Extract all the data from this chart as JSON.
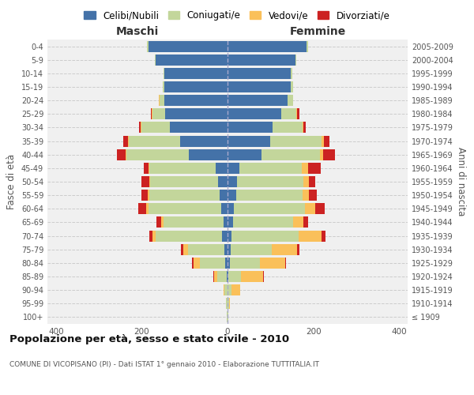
{
  "age_groups": [
    "100+",
    "95-99",
    "90-94",
    "85-89",
    "80-84",
    "75-79",
    "70-74",
    "65-69",
    "60-64",
    "55-59",
    "50-54",
    "45-49",
    "40-44",
    "35-39",
    "30-34",
    "25-29",
    "20-24",
    "15-19",
    "10-14",
    "5-9",
    "0-4"
  ],
  "birth_years": [
    "≤ 1909",
    "1910-1914",
    "1915-1919",
    "1920-1924",
    "1925-1929",
    "1930-1934",
    "1935-1939",
    "1940-1944",
    "1945-1949",
    "1950-1954",
    "1955-1959",
    "1960-1964",
    "1965-1969",
    "1970-1974",
    "1975-1979",
    "1980-1984",
    "1985-1989",
    "1990-1994",
    "1995-1999",
    "2000-2004",
    "2005-2009"
  ],
  "maschi": {
    "celibi": [
      0,
      0,
      0,
      2,
      5,
      8,
      12,
      10,
      15,
      18,
      22,
      28,
      90,
      110,
      135,
      145,
      148,
      148,
      148,
      168,
      185
    ],
    "coniugati": [
      2,
      4,
      8,
      22,
      60,
      85,
      155,
      140,
      170,
      165,
      158,
      155,
      145,
      120,
      65,
      30,
      10,
      3,
      2,
      2,
      2
    ],
    "vedovi": [
      0,
      0,
      2,
      8,
      15,
      10,
      8,
      5,
      5,
      3,
      2,
      2,
      2,
      2,
      2,
      2,
      2,
      0,
      0,
      0,
      0
    ],
    "divorziati": [
      0,
      0,
      0,
      2,
      2,
      5,
      8,
      10,
      18,
      15,
      18,
      10,
      20,
      12,
      5,
      2,
      0,
      0,
      0,
      0,
      0
    ]
  },
  "femmine": {
    "nubili": [
      0,
      0,
      0,
      2,
      5,
      8,
      10,
      12,
      15,
      20,
      22,
      28,
      80,
      100,
      105,
      125,
      140,
      148,
      148,
      158,
      185
    ],
    "coniugate": [
      2,
      4,
      10,
      30,
      70,
      95,
      155,
      140,
      165,
      155,
      155,
      145,
      135,
      120,
      70,
      35,
      12,
      5,
      3,
      3,
      2
    ],
    "vedove": [
      0,
      2,
      20,
      50,
      60,
      60,
      55,
      25,
      25,
      15,
      12,
      15,
      8,
      5,
      2,
      2,
      0,
      0,
      0,
      0,
      0
    ],
    "divorziate": [
      0,
      0,
      0,
      2,
      2,
      5,
      8,
      10,
      22,
      18,
      15,
      30,
      28,
      12,
      5,
      5,
      0,
      0,
      0,
      0,
      0
    ]
  },
  "colors": {
    "celibi": "#4472a8",
    "coniugati": "#c3d69b",
    "vedovi": "#fac05a",
    "divorziati": "#cc2222"
  },
  "xlim": 420,
  "title": "Popolazione per età, sesso e stato civile - 2010",
  "subtitle": "COMUNE DI VICOPISANO (PI) - Dati ISTAT 1° gennaio 2010 - Elaborazione TUTTITALIA.IT",
  "xlabel_left": "Maschi",
  "xlabel_right": "Femmine",
  "ylabel_left": "Fasce di età",
  "ylabel_right": "Anni di nascita",
  "legend": [
    "Celibi/Nubili",
    "Coniugati/e",
    "Vedovi/e",
    "Divorziati/e"
  ],
  "bg_color": "#f0f0f0",
  "grid_color": "#cccccc"
}
